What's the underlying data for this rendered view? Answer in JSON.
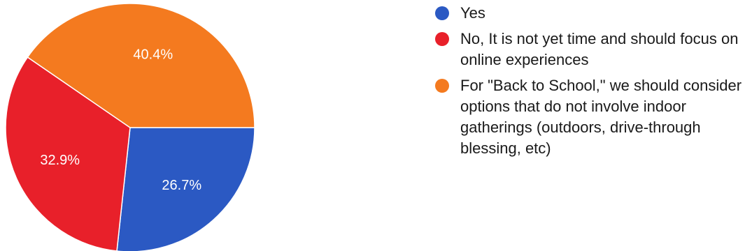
{
  "chart_data": {
    "type": "pie",
    "slices": [
      {
        "label": "Yes",
        "value": 26.7,
        "display": "26.7%",
        "color": "#2b59c3"
      },
      {
        "label": "No, It is not yet time and should focus on online experiences",
        "value": 32.9,
        "display": "32.9%",
        "color": "#e8202a"
      },
      {
        "label": "For \"Back to School,\" we should consider options that do not involve indoor gatherings (outdoors, drive-through blessing, etc)",
        "value": 40.4,
        "display": "40.4%",
        "color": "#f47a1f"
      }
    ],
    "legend_position": "right"
  }
}
